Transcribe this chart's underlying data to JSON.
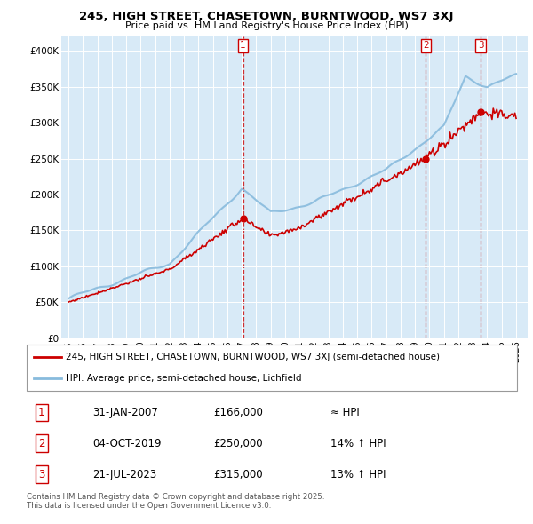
{
  "title": "245, HIGH STREET, CHASETOWN, BURNTWOOD, WS7 3XJ",
  "subtitle": "Price paid vs. HM Land Registry's House Price Index (HPI)",
  "ylim": [
    0,
    420000
  ],
  "xlim_start": 1994.5,
  "xlim_end": 2026.8,
  "plot_bg_color": "#d8eaf7",
  "fig_bg_color": "#ffffff",
  "grid_color": "#ffffff",
  "sale_dates": [
    2007.083,
    2019.753,
    2023.553
  ],
  "sale_prices": [
    166000,
    250000,
    315000
  ],
  "sale_labels": [
    "1",
    "2",
    "3"
  ],
  "legend_line1": "245, HIGH STREET, CHASETOWN, BURNTWOOD, WS7 3XJ (semi-detached house)",
  "legend_line2": "HPI: Average price, semi-detached house, Lichfield",
  "table_rows": [
    [
      "1",
      "31-JAN-2007",
      "£166,000",
      "≈ HPI"
    ],
    [
      "2",
      "04-OCT-2019",
      "£250,000",
      "14% ↑ HPI"
    ],
    [
      "3",
      "21-JUL-2023",
      "£315,000",
      "13% ↑ HPI"
    ]
  ],
  "footer": "Contains HM Land Registry data © Crown copyright and database right 2025.\nThis data is licensed under the Open Government Licence v3.0.",
  "line_color_red": "#cc0000",
  "line_color_blue": "#88bbdd",
  "dashed_line_color": "#cc0000",
  "yticks": [
    0,
    50000,
    100000,
    150000,
    200000,
    250000,
    300000,
    350000,
    400000
  ],
  "ytick_labels": [
    "£0",
    "£50K",
    "£100K",
    "£150K",
    "£200K",
    "£250K",
    "£300K",
    "£350K",
    "£400K"
  ]
}
